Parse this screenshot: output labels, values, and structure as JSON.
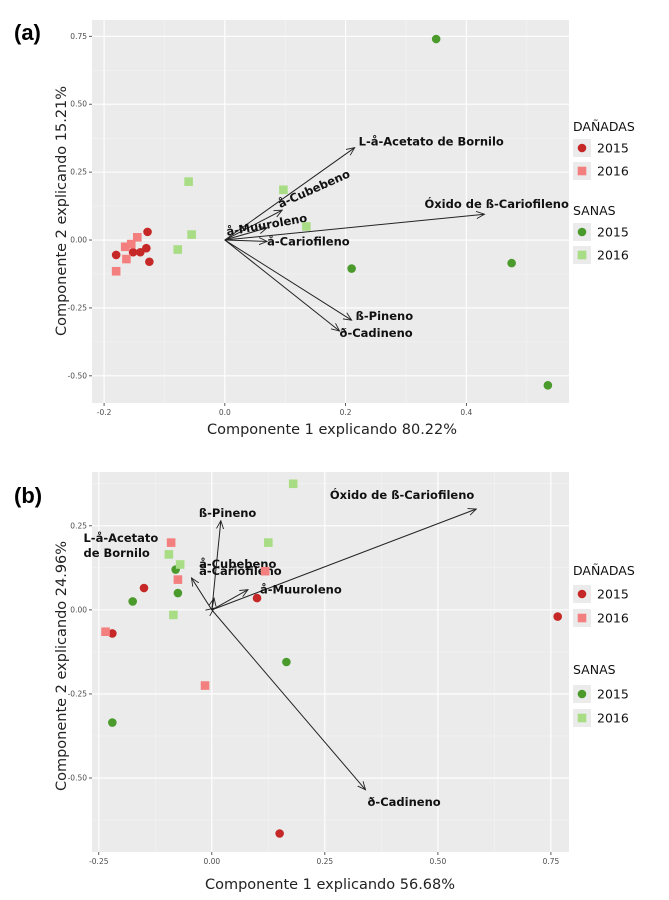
{
  "figure": {
    "colors": {
      "panel_bg": "#ebebeb",
      "grid_major": "#ffffff",
      "grid_minor": "#f4f4f4",
      "danadas_2015": "#c62828",
      "danadas_2016": "#f37f7f",
      "sanas_2015": "#4a9a2c",
      "sanas_2016": "#a8dd85",
      "arrow": "#222222"
    },
    "legend": {
      "groups": [
        {
          "title": "DAÑADAS",
          "items": [
            {
              "label": "2015",
              "shape": "circle",
              "color": "#c62828"
            },
            {
              "label": "2016",
              "shape": "square",
              "color": "#f37f7f"
            }
          ]
        },
        {
          "title": "SANAS",
          "items": [
            {
              "label": "2015",
              "shape": "circle",
              "color": "#4a9a2c"
            },
            {
              "label": "2016",
              "shape": "square",
              "color": "#a8dd85"
            }
          ]
        }
      ]
    }
  },
  "chart_data": [
    {
      "panel_label": "(a)",
      "type": "scatter",
      "xlabel": "Componente 1 explicando 80.22%",
      "ylabel": "Componente 2 explicando 15.21%",
      "xlim": [
        -0.22,
        0.57
      ],
      "ylim": [
        -0.6,
        0.81
      ],
      "x_ticks": [
        -0.2,
        0.0,
        0.2,
        0.4
      ],
      "x_tick_labels": [
        "-0.2",
        "0.0",
        "0.2",
        "0.4"
      ],
      "y_ticks": [
        -0.5,
        -0.25,
        0.0,
        0.25,
        0.5,
        0.75
      ],
      "y_tick_labels": [
        "-0.50",
        "-0.25",
        "0.00",
        "0.25",
        "0.50",
        "0.75"
      ],
      "grid": true,
      "series": [
        {
          "name": "DAÑADAS 2015",
          "points": [
            [
              -0.18,
              -0.055
            ],
            [
              -0.152,
              -0.045
            ],
            [
              -0.14,
              -0.045
            ],
            [
              -0.13,
              -0.03
            ],
            [
              -0.128,
              0.03
            ],
            [
              -0.125,
              -0.08
            ]
          ]
        },
        {
          "name": "DAÑADAS 2016",
          "points": [
            [
              -0.18,
              -0.115
            ],
            [
              -0.165,
              -0.025
            ],
            [
              -0.163,
              -0.07
            ],
            [
              -0.155,
              -0.015
            ],
            [
              -0.145,
              0.01
            ]
          ]
        },
        {
          "name": "SANAS 2015",
          "points": [
            [
              0.35,
              0.74
            ],
            [
              0.21,
              -0.105
            ],
            [
              0.475,
              -0.085
            ],
            [
              0.535,
              -0.535
            ]
          ]
        },
        {
          "name": "SANAS 2016",
          "points": [
            [
              -0.06,
              0.215
            ],
            [
              -0.055,
              0.02
            ],
            [
              -0.078,
              -0.035
            ],
            [
              0.097,
              0.185
            ],
            [
              0.135,
              0.05
            ]
          ]
        }
      ],
      "loadings": [
        {
          "label": "L-å-Acetato de Bornilo",
          "x": 0.215,
          "y": 0.34
        },
        {
          "label": "å-Cubebeno",
          "x": 0.095,
          "y": 0.11
        },
        {
          "label": "å-Muuroleno",
          "x": 0.07,
          "y": 0.045
        },
        {
          "label": "å-Cariofileno",
          "x": 0.07,
          "y": -0.005
        },
        {
          "label": "Óxido de ß-Cariofileno",
          "x": 0.43,
          "y": 0.095
        },
        {
          "label": "ß-Pineno",
          "x": 0.21,
          "y": -0.295
        },
        {
          "label": "ð-Cadineno",
          "x": 0.19,
          "y": -0.335
        }
      ]
    },
    {
      "panel_label": "(b)",
      "type": "scatter",
      "xlabel": "Componente 1 explicando 56.68%",
      "ylabel": "Componente 2 explicando 24.96%",
      "xlim": [
        -0.265,
        0.79
      ],
      "ylim": [
        -0.72,
        0.41
      ],
      "x_ticks": [
        -0.25,
        0.0,
        0.25,
        0.5,
        0.75
      ],
      "x_tick_labels": [
        "-0.25",
        "0.00",
        "0.25",
        "0.50",
        "0.75"
      ],
      "y_ticks": [
        -0.5,
        -0.25,
        0.0,
        0.25
      ],
      "y_tick_labels": [
        "-0.50",
        "-0.25",
        "0.00",
        "0.25"
      ],
      "grid": true,
      "series": [
        {
          "name": "DAÑADAS 2015",
          "points": [
            [
              -0.22,
              -0.07
            ],
            [
              -0.15,
              0.065
            ],
            [
              0.1,
              0.035
            ],
            [
              0.15,
              -0.665
            ],
            [
              0.765,
              -0.02
            ]
          ]
        },
        {
          "name": "DAÑADAS 2016",
          "points": [
            [
              -0.235,
              -0.065
            ],
            [
              -0.09,
              0.2
            ],
            [
              -0.075,
              0.09
            ],
            [
              -0.015,
              -0.225
            ],
            [
              0.118,
              0.115
            ]
          ]
        },
        {
          "name": "SANAS 2015",
          "points": [
            [
              -0.22,
              -0.335
            ],
            [
              -0.175,
              0.025
            ],
            [
              -0.08,
              0.12
            ],
            [
              -0.075,
              0.05
            ],
            [
              0.165,
              -0.155
            ]
          ]
        },
        {
          "name": "SANAS 2016",
          "points": [
            [
              -0.095,
              0.165
            ],
            [
              -0.085,
              -0.015
            ],
            [
              -0.07,
              0.135
            ],
            [
              0.125,
              0.2
            ],
            [
              0.18,
              0.375
            ]
          ]
        }
      ],
      "loadings": [
        {
          "label": "Óxido de ß-Cariofileno",
          "x": 0.585,
          "y": 0.3
        },
        {
          "label": "ß-Pineno",
          "x": 0.02,
          "y": 0.265
        },
        {
          "label": "L-å-Acetato de Bornilo",
          "x": -0.045,
          "y": 0.095
        },
        {
          "label": "å-Cubebeno",
          "x": 0.005,
          "y": 0.035
        },
        {
          "label": "å-Cariofileno",
          "x": 0.005,
          "y": 0.005
        },
        {
          "label": "å-Muuroleno",
          "x": 0.08,
          "y": 0.06
        },
        {
          "label": "ð-Cadineno",
          "x": 0.34,
          "y": -0.535
        }
      ]
    }
  ]
}
